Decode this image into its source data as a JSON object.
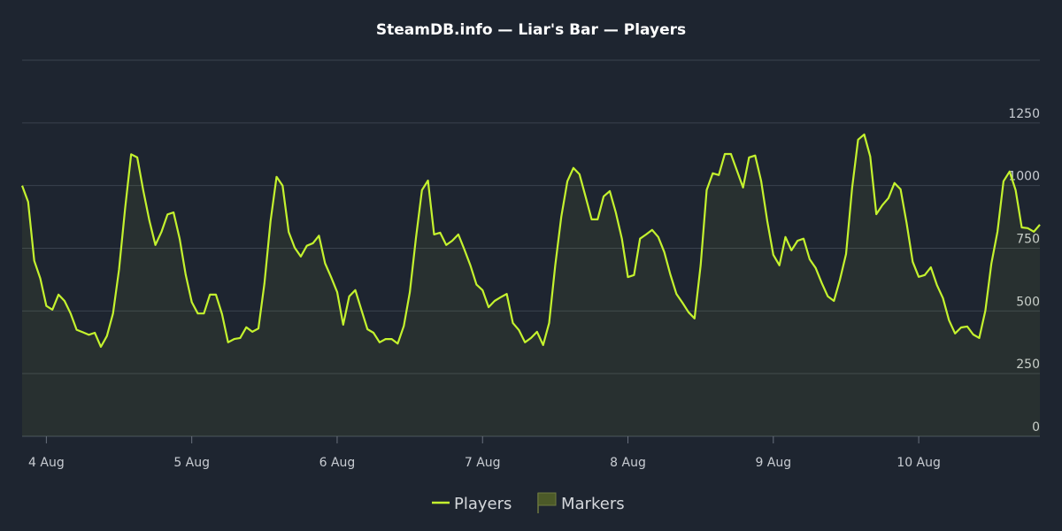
{
  "chart_data": {
    "type": "line",
    "title": "SteamDB.info — Liar's Bar — Players",
    "x": [
      -4,
      -3,
      -2,
      -1,
      0,
      1,
      2,
      3,
      4,
      5,
      6,
      7,
      8,
      9,
      10,
      11,
      12,
      13,
      14,
      15,
      16,
      17,
      18,
      19,
      20,
      21,
      22,
      23,
      24,
      25,
      26,
      27,
      28,
      29,
      30,
      31,
      32,
      33,
      34,
      35,
      36,
      37,
      38,
      39,
      40,
      41,
      42,
      43,
      44,
      45,
      46,
      47,
      48,
      49,
      50,
      51,
      52,
      53,
      54,
      55,
      56,
      57,
      58,
      59,
      60,
      61,
      62,
      63,
      64,
      65,
      66,
      67,
      68,
      69,
      70,
      71,
      72,
      73,
      74,
      75,
      76,
      77,
      78,
      79,
      80,
      81,
      82,
      83,
      84,
      85,
      86,
      87,
      88,
      89,
      90,
      91,
      92,
      93,
      94,
      95,
      96,
      97,
      98,
      99,
      100,
      101,
      102,
      103,
      104,
      105,
      106,
      107,
      108,
      109,
      110,
      111,
      112,
      113,
      114,
      115,
      116,
      117,
      118,
      119,
      120,
      121,
      122,
      123,
      124,
      125,
      126,
      127,
      128,
      129,
      130,
      131,
      132,
      133,
      134,
      135,
      136,
      137,
      138,
      139,
      140,
      141,
      142,
      143,
      144,
      145,
      146,
      147,
      148,
      149,
      150,
      151,
      152,
      153,
      154,
      155,
      156,
      157,
      158,
      159,
      160,
      161,
      162,
      163,
      164
    ],
    "series": [
      {
        "name": "Players",
        "color": "#c4f22e",
        "values": [
          1000,
          935,
          700,
          630,
          520,
          505,
          565,
          540,
          490,
          425,
          415,
          405,
          413,
          357,
          400,
          490,
          665,
          910,
          1125,
          1112,
          980,
          860,
          763,
          815,
          885,
          893,
          788,
          645,
          535,
          490,
          490,
          565,
          565,
          487,
          375,
          388,
          392,
          435,
          417,
          430,
          610,
          858,
          1035,
          1000,
          815,
          752,
          717,
          760,
          770,
          800,
          690,
          635,
          575,
          445,
          558,
          583,
          505,
          427,
          413,
          375,
          388,
          388,
          370,
          440,
          575,
          788,
          982,
          1020,
          805,
          812,
          763,
          780,
          805,
          745,
          682,
          605,
          583,
          515,
          540,
          555,
          568,
          452,
          424,
          375,
          392,
          417,
          364,
          452,
          682,
          875,
          1017,
          1070,
          1045,
          957,
          865,
          865,
          957,
          978,
          893,
          788,
          635,
          643,
          788,
          805,
          823,
          795,
          735,
          646,
          568,
          533,
          495,
          470,
          682,
          982,
          1049,
          1042,
          1126,
          1126,
          1060,
          992,
          1112,
          1120,
          1017,
          858,
          724,
          682,
          795,
          742,
          780,
          788,
          706,
          671,
          611,
          558,
          540,
          625,
          727,
          989,
          1183,
          1204,
          1116,
          886,
          922,
          950,
          1010,
          985,
          851,
          696,
          636,
          643,
          674,
          604,
          551,
          463,
          410,
          434,
          438,
          406,
          392,
          501,
          689,
          816,
          1017,
          1056,
          982,
          833,
          830,
          816,
          844
        ]
      }
    ],
    "markers_legend": "Markers",
    "xlim": [
      -4,
      164
    ],
    "xticks": [
      {
        "value": 0,
        "label": "4 Aug"
      },
      {
        "value": 24,
        "label": "5 Aug"
      },
      {
        "value": 48,
        "label": "6 Aug"
      },
      {
        "value": 72,
        "label": "7 Aug"
      },
      {
        "value": 96,
        "label": "8 Aug"
      },
      {
        "value": 120,
        "label": "9 Aug"
      },
      {
        "value": 144,
        "label": "10 Aug"
      }
    ],
    "ylim": [
      0,
      1500
    ],
    "yticks": [
      0,
      250,
      500,
      750,
      1000,
      1250
    ],
    "grid": true
  }
}
